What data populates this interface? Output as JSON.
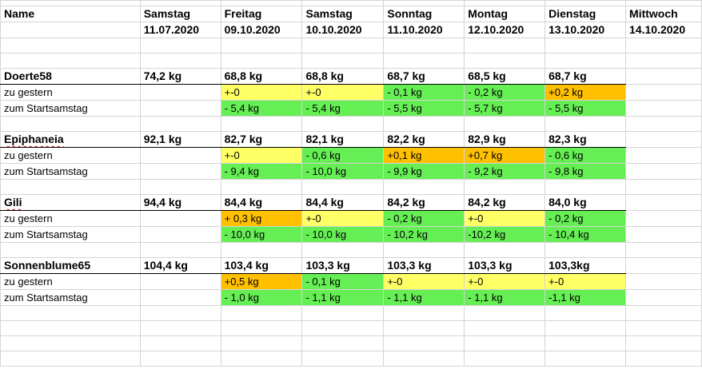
{
  "header": {
    "name_label": "Name",
    "columns": [
      {
        "day": "Samstag",
        "date": "11.07.2020"
      },
      {
        "day": "Freitag",
        "date": "09.10.2020"
      },
      {
        "day": "Samstag",
        "date": "10.10.2020"
      },
      {
        "day": "Sonntag",
        "date": "11.10.2020"
      },
      {
        "day": "Montag",
        "date": "12.10.2020"
      },
      {
        "day": "Dienstag",
        "date": "13.10.2020"
      },
      {
        "day": "Mittwoch",
        "date": "14.10.2020"
      }
    ]
  },
  "colors": {
    "yellow": "#ffff66",
    "orange": "#ffc000",
    "green": "#66ee55"
  },
  "people": [
    {
      "name": "Doerte58",
      "start": "74,2 kg",
      "weights": [
        "68,8 kg",
        "68,8 kg",
        "68,7 kg",
        "68,5 kg",
        "68,7 kg",
        ""
      ],
      "diff_label": "zu gestern",
      "diff": [
        "+-0",
        "+-0",
        "- 0,1 kg",
        "- 0,2 kg",
        "+0,2 kg",
        ""
      ],
      "diff_colors": [
        "yellow",
        "yellow",
        "green",
        "green",
        "orange",
        ""
      ],
      "start_label": "zum Startsamstag",
      "since_start": [
        "- 5,4 kg",
        "- 5,4 kg",
        "- 5,5 kg",
        "- 5,7 kg",
        "- 5,5 kg",
        ""
      ],
      "since_colors": [
        "green",
        "green",
        "green",
        "green",
        "green",
        ""
      ]
    },
    {
      "name": "Epiphaneia",
      "start": "92,1 kg",
      "weights": [
        "82,7 kg",
        "82,1 kg",
        "82,2 kg",
        "82,9 kg",
        "82,3 kg",
        ""
      ],
      "diff_label": "zu gestern",
      "diff": [
        "+-0",
        "-  0,6 kg",
        "+0,1 kg",
        "+0,7 kg",
        "- 0,6 kg",
        ""
      ],
      "diff_colors": [
        "yellow",
        "green",
        "orange",
        "orange",
        "green",
        ""
      ],
      "start_label": "zum Startsamstag",
      "since_start": [
        "- 9,4 kg",
        "- 10,0 kg",
        "- 9,9 kg",
        "- 9,2 kg",
        "- 9,8 kg",
        ""
      ],
      "since_colors": [
        "green",
        "green",
        "green",
        "green",
        "green",
        ""
      ]
    },
    {
      "name": "Gili",
      "start": "94,4 kg",
      "weights": [
        "84,4 kg",
        "84,4 kg",
        "84,2 kg",
        "84,2 kg",
        "84,0 kg",
        ""
      ],
      "diff_label": "zu gestern",
      "diff": [
        "+  0,3 kg",
        " +-0",
        "-   0,2 kg",
        "+-0",
        "-   0,2 kg",
        ""
      ],
      "diff_colors": [
        "orange",
        "yellow",
        "green",
        "yellow",
        "green",
        ""
      ],
      "start_label": "zum Startsamstag",
      "since_start": [
        "- 10,0 kg",
        "- 10,0 kg",
        "- 10,2 kg",
        "-10,2 kg",
        "- 10,4 kg",
        ""
      ],
      "since_colors": [
        "green",
        "green",
        "green",
        "green",
        "green",
        ""
      ]
    },
    {
      "name": "Sonnenblume65",
      "start": "104,4 kg",
      "weights": [
        "103,4 kg",
        "103,3 kg",
        "103,3 kg",
        "103,3 kg",
        "103,3kg",
        ""
      ],
      "diff_label": "zu gestern",
      "diff": [
        "+0,5 kg",
        "- 0,1 kg",
        "+-0",
        "+-0",
        "+-0",
        ""
      ],
      "diff_colors": [
        "orange",
        "green",
        "yellow",
        "yellow",
        "yellow",
        ""
      ],
      "start_label": "zum Startsamstag",
      "since_start": [
        "- 1,0 kg",
        "- 1,1 kg",
        "- 1,1 kg",
        "- 1,1 kg",
        "-1,1 kg",
        ""
      ],
      "since_colors": [
        "green",
        "green",
        "green",
        "green",
        "green",
        ""
      ]
    }
  ]
}
